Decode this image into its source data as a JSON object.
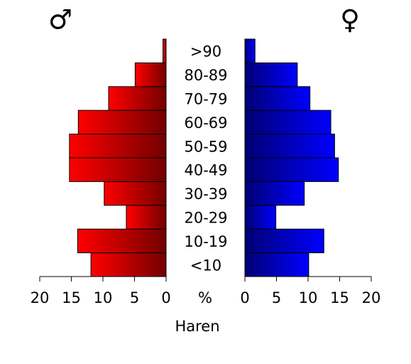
{
  "chart_data": {
    "type": "pyramid",
    "categories": [
      "<10",
      "10-19",
      "20-29",
      "30-39",
      "40-49",
      "50-59",
      "60-69",
      "70-79",
      "80-89",
      ">90"
    ],
    "series": [
      {
        "name": "♂",
        "color": "#ff0000",
        "values": [
          11.9,
          14.0,
          6.3,
          9.8,
          15.3,
          15.3,
          13.9,
          9.1,
          4.9,
          0.5
        ]
      },
      {
        "name": "♀",
        "color": "#0000ff",
        "values": [
          10.1,
          12.5,
          4.9,
          9.4,
          14.8,
          14.2,
          13.6,
          10.3,
          8.3,
          1.6
        ]
      }
    ],
    "xlim": [
      0,
      20
    ],
    "xticks": [
      0,
      5,
      10,
      15,
      20
    ],
    "unit_label": "%",
    "xlabel": "Haren"
  }
}
